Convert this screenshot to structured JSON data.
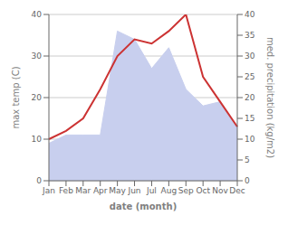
{
  "chart_data": {
    "type": "line",
    "categories": [
      "Jan",
      "Feb",
      "Mar",
      "Apr",
      "May",
      "Jun",
      "Jul",
      "Aug",
      "Sep",
      "Oct",
      "Nov",
      "Dec"
    ],
    "xlabel": "date (month)",
    "ylabel": "max temp (C)",
    "y2label": "med. precipitation (kg/m2)",
    "series": [
      {
        "type": "area",
        "color": "#c8cfee",
        "axis": "y2",
        "values": [
          9,
          11,
          11,
          11,
          36,
          34,
          27,
          32,
          22,
          18,
          19,
          13
        ]
      },
      {
        "type": "line",
        "color": "#cc3333",
        "values": [
          10,
          12,
          15,
          22,
          30,
          34,
          33,
          36,
          40,
          25,
          19,
          13
        ]
      }
    ],
    "ylim": [
      0,
      40
    ],
    "yticks": [
      0,
      10,
      20,
      30,
      40
    ],
    "y2lim": [
      0,
      40
    ],
    "y2ticks": [
      0,
      5,
      10,
      15,
      20,
      25,
      30,
      35,
      40
    ],
    "grid": true
  }
}
